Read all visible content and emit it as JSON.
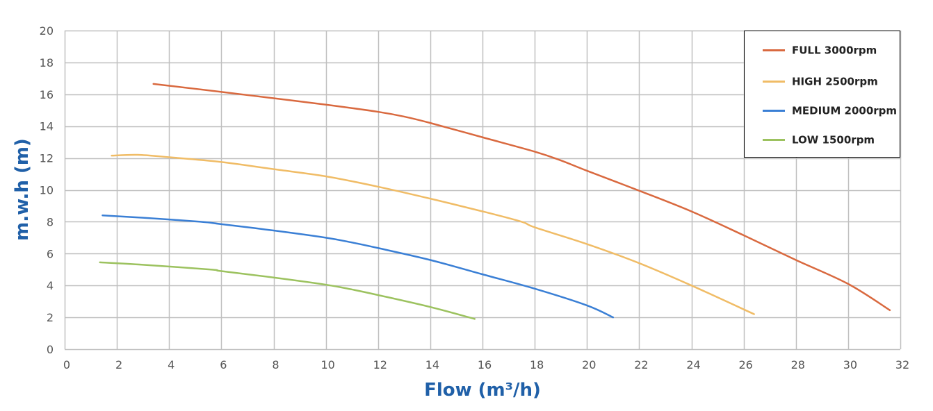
{
  "chart_data": {
    "type": "line",
    "xlabel": "Flow (m³/h)",
    "ylabel": "m.w.h (m)",
    "xlim": [
      0,
      32
    ],
    "ylim": [
      0,
      20
    ],
    "x_ticks": [
      0,
      2,
      4,
      6,
      8,
      10,
      12,
      14,
      16,
      18,
      20,
      22,
      24,
      26,
      28,
      30,
      32
    ],
    "y_ticks": [
      0,
      2,
      4,
      6,
      8,
      10,
      12,
      14,
      16,
      18,
      20
    ],
    "grid": true,
    "legend_position": "top-right",
    "colors": {
      "axis_title": "#2060a8",
      "grid": "#bfbfbf",
      "tick_label": "#555555"
    },
    "series": [
      {
        "name": "FULL 3000rpm",
        "color": "#d9693f",
        "points": [
          [
            3.4,
            16.65
          ],
          [
            6,
            16.15
          ],
          [
            8,
            15.75
          ],
          [
            10,
            15.35
          ],
          [
            12,
            14.9
          ],
          [
            13,
            14.6
          ],
          [
            14,
            14.2
          ],
          [
            16,
            13.3
          ],
          [
            18,
            12.4
          ],
          [
            19,
            11.85
          ],
          [
            20,
            11.2
          ],
          [
            22,
            9.95
          ],
          [
            24,
            8.65
          ],
          [
            26,
            7.15
          ],
          [
            28,
            5.6
          ],
          [
            30,
            4.1
          ],
          [
            31.6,
            2.45
          ]
        ]
      },
      {
        "name": "HIGH 2500rpm",
        "color": "#f0bc66",
        "points": [
          [
            1.8,
            12.15
          ],
          [
            2.8,
            12.2
          ],
          [
            4,
            12.05
          ],
          [
            6,
            11.75
          ],
          [
            8,
            11.3
          ],
          [
            10,
            10.85
          ],
          [
            12,
            10.2
          ],
          [
            14,
            9.45
          ],
          [
            16,
            8.65
          ],
          [
            17.5,
            8
          ],
          [
            18,
            7.65
          ],
          [
            20,
            6.6
          ],
          [
            22,
            5.4
          ],
          [
            24,
            4.0
          ],
          [
            26.4,
            2.2
          ]
        ]
      },
      {
        "name": "MEDIUM 2000rpm",
        "color": "#3a7fd5",
        "points": [
          [
            1.45,
            8.4
          ],
          [
            3,
            8.25
          ],
          [
            5.2,
            8.0
          ],
          [
            6,
            7.85
          ],
          [
            8,
            7.45
          ],
          [
            10,
            7.0
          ],
          [
            11,
            6.7
          ],
          [
            12,
            6.35
          ],
          [
            14,
            5.6
          ],
          [
            16,
            4.7
          ],
          [
            18,
            3.8
          ],
          [
            20,
            2.75
          ],
          [
            21,
            2.0
          ]
        ]
      },
      {
        "name": "LOW 1500rpm",
        "color": "#9cc25f",
        "points": [
          [
            1.35,
            5.45
          ],
          [
            3,
            5.3
          ],
          [
            5.6,
            5.0
          ],
          [
            6,
            4.9
          ],
          [
            8,
            4.5
          ],
          [
            10,
            4.05
          ],
          [
            11,
            3.75
          ],
          [
            12,
            3.4
          ],
          [
            14,
            2.65
          ],
          [
            15.7,
            1.9
          ]
        ]
      }
    ]
  }
}
